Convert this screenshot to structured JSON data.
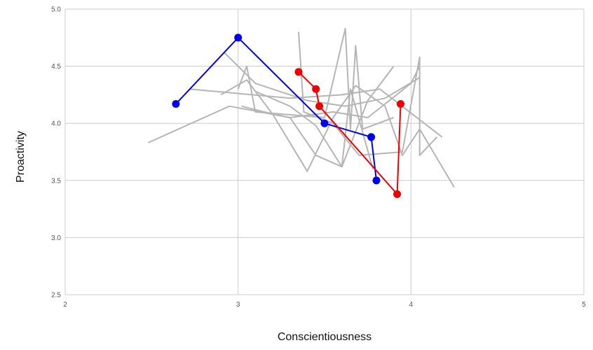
{
  "chart_data": {
    "type": "line",
    "xlabel": "Conscientiousness",
    "ylabel": "Proactivity",
    "xlim": [
      2,
      5
    ],
    "ylim": [
      2.5,
      5.0
    ],
    "x_ticks": [
      "2",
      "3",
      "4",
      "5"
    ],
    "y_ticks": [
      "2.5",
      "3.0",
      "3.5",
      "4.0",
      "4.5",
      "5.0"
    ],
    "grid": true,
    "legend": "none",
    "background_series_color": "#b5b5b5",
    "background_series": [
      {
        "points": [
          [
            2.48,
            3.83
          ],
          [
            2.95,
            4.15
          ],
          [
            3.3,
            4.05
          ],
          [
            3.55,
            4.1
          ],
          [
            3.75,
            4.05
          ],
          [
            4.0,
            4.35
          ],
          [
            4.05,
            4.5
          ]
        ]
      },
      {
        "points": [
          [
            2.72,
            4.3
          ],
          [
            3.3,
            4.22
          ],
          [
            3.6,
            4.25
          ],
          [
            3.82,
            4.3
          ],
          [
            4.18,
            3.88
          ]
        ]
      },
      {
        "points": [
          [
            2.92,
            4.62
          ],
          [
            3.1,
            4.35
          ],
          [
            3.4,
            4.2
          ],
          [
            3.62,
            4.15
          ],
          [
            3.85,
            4.22
          ],
          [
            4.05,
            4.4
          ]
        ]
      },
      {
        "points": [
          [
            3.35,
            4.8
          ],
          [
            3.38,
            4.1
          ],
          [
            3.55,
            4.0
          ],
          [
            3.7,
            3.72
          ],
          [
            3.95,
            3.75
          ],
          [
            4.05,
            4.58
          ],
          [
            4.05,
            3.72
          ],
          [
            4.15,
            3.88
          ]
        ]
      },
      {
        "points": [
          [
            3.0,
            4.3
          ],
          [
            3.05,
            4.5
          ],
          [
            3.1,
            4.1
          ],
          [
            3.5,
            4.05
          ],
          [
            3.62,
            4.83
          ],
          [
            3.65,
            3.95
          ],
          [
            3.68,
            4.68
          ],
          [
            3.72,
            3.95
          ],
          [
            3.9,
            4.05
          ]
        ]
      },
      {
        "points": [
          [
            2.9,
            4.25
          ],
          [
            3.05,
            4.38
          ],
          [
            3.2,
            4.08
          ],
          [
            3.4,
            3.58
          ],
          [
            3.55,
            4.05
          ],
          [
            3.68,
            4.33
          ],
          [
            3.85,
            4.15
          ],
          [
            3.95,
            3.72
          ],
          [
            4.05,
            3.95
          ],
          [
            4.25,
            3.44
          ]
        ]
      },
      {
        "points": [
          [
            3.02,
            4.15
          ],
          [
            3.15,
            4.1
          ],
          [
            3.3,
            4.05
          ],
          [
            3.45,
            3.72
          ],
          [
            3.6,
            3.62
          ],
          [
            3.75,
            4.2
          ],
          [
            3.9,
            4.5
          ]
        ]
      },
      {
        "points": [
          [
            3.1,
            4.28
          ],
          [
            3.3,
            4.15
          ],
          [
            3.45,
            3.98
          ],
          [
            3.6,
            3.62
          ],
          [
            3.65,
            4.3
          ],
          [
            3.78,
            3.6
          ]
        ]
      }
    ],
    "series": [
      {
        "color": "#0000ee",
        "x": [
          2.64,
          3.0,
          3.5,
          3.77,
          3.8
        ],
        "y": [
          4.17,
          4.75,
          4.0,
          3.88,
          3.5
        ]
      },
      {
        "color": "#ee0000",
        "x": [
          3.35,
          3.45,
          3.47,
          3.92,
          3.94
        ],
        "y": [
          4.45,
          4.3,
          4.15,
          3.38,
          4.17
        ]
      }
    ]
  }
}
